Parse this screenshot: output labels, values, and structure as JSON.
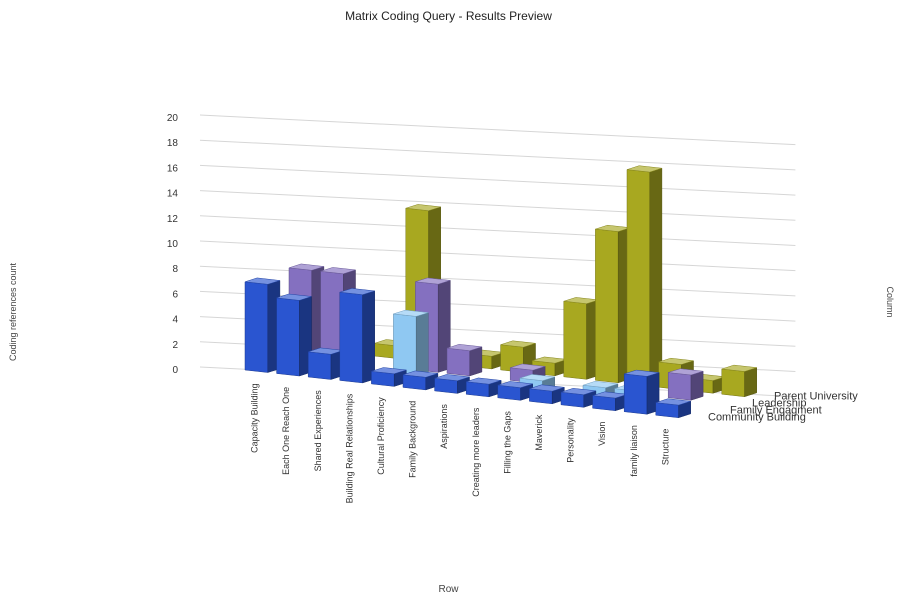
{
  "chart_data": {
    "type": "bar",
    "title": "Matrix Coding Query - Results Preview",
    "xlabel": "Row",
    "ylabel": "Coding references count",
    "zlabel": "Column",
    "ylim": [
      0,
      20
    ],
    "yticks": [
      0,
      2,
      4,
      6,
      8,
      10,
      12,
      14,
      16,
      18,
      20
    ],
    "grid": true,
    "legend": "right",
    "categories": [
      "Capacity Building",
      "Each One Reach One",
      "Shared Experiences",
      "Building Real Relationships",
      "Cultural Proficiency",
      "Family Background",
      "Aspirations",
      "Creating more leaders",
      "Filling the Gaps",
      "Maverick",
      "Personality",
      "Vision",
      "family liaison",
      "Structure"
    ],
    "series": [
      {
        "name": "Community Building",
        "color": "#2a55d0",
        "values": [
          7,
          6,
          2,
          7,
          1,
          1,
          1,
          1,
          1,
          1,
          1,
          1,
          3,
          1
        ]
      },
      {
        "name": "Family Engagment",
        "color": "#8fc8f2",
        "values": [
          0,
          0,
          0,
          0,
          5,
          0,
          0,
          0,
          1,
          0,
          1,
          1,
          0,
          0
        ]
      },
      {
        "name": "Leadership",
        "color": "#8470c0",
        "values": [
          7,
          7,
          0,
          0,
          7,
          2,
          0,
          1,
          0,
          0,
          0,
          0,
          2,
          0
        ]
      },
      {
        "name": "Parent University",
        "color": "#a8a820",
        "values": [
          0,
          0,
          1,
          12,
          0,
          1,
          2,
          1,
          6,
          12,
          17,
          2,
          1,
          2
        ]
      }
    ]
  }
}
